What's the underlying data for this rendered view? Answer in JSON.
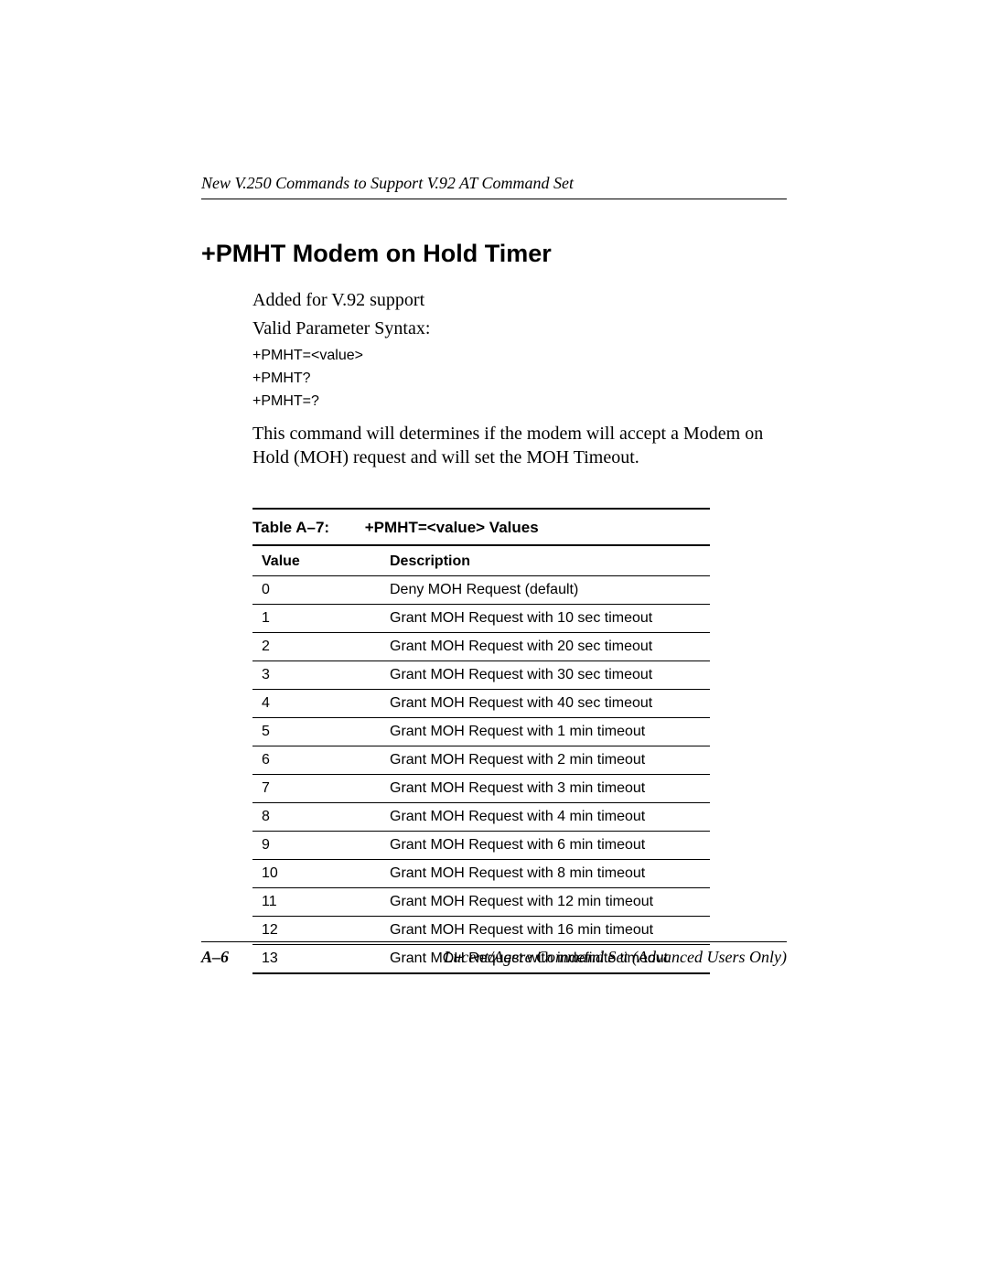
{
  "header": {
    "running_title": "New V.250 Commands to Support V.92 AT Command Set"
  },
  "section": {
    "title": "+PMHT  Modem on Hold Timer",
    "intro_line1": "Added for V.92 support",
    "intro_line2": "Valid Parameter Syntax:",
    "syntax": [
      "+PMHT=<value>",
      "+PMHT?",
      "+PMHT=?"
    ],
    "description": "This command will determines if the modem will accept a Modem on Hold (MOH) request and will set the MOH Timeout."
  },
  "table": {
    "caption_number": "Table A–7:",
    "caption_title": "+PMHT=<value> Values",
    "columns": [
      "Value",
      "Description"
    ],
    "rows": [
      [
        "0",
        "Deny MOH Request (default)"
      ],
      [
        "1",
        "Grant MOH Request with 10 sec timeout"
      ],
      [
        "2",
        "Grant MOH Request with 20 sec timeout"
      ],
      [
        "3",
        "Grant MOH Request with 30 sec timeout"
      ],
      [
        "4",
        "Grant MOH Request with 40 sec timeout"
      ],
      [
        "5",
        "Grant MOH Request with 1 min timeout"
      ],
      [
        "6",
        "Grant MOH Request with  2 min timeout"
      ],
      [
        "7",
        "Grant MOH Request with  3 min timeout"
      ],
      [
        "8",
        "Grant MOH Request with  4 min timeout"
      ],
      [
        "9",
        "Grant MOH Request with  6 min timeout"
      ],
      [
        "10",
        "Grant MOH Request with  8 min timeout"
      ],
      [
        "11",
        "Grant MOH Request with 12 min timeout"
      ],
      [
        "12",
        "Grant MOH Request with 16 min timeout"
      ],
      [
        "13",
        "Grant MOH Request with indefinite timeout"
      ]
    ]
  },
  "footer": {
    "page_label": "A–6",
    "doc_title": "Lucent/Agere Command Set (Advanced Users Only)"
  }
}
